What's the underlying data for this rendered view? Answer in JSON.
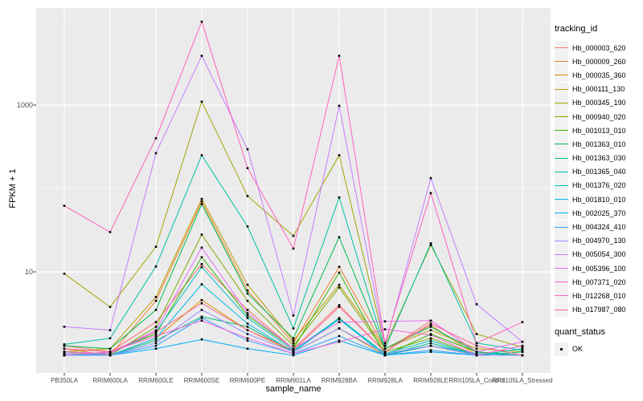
{
  "figure": {
    "y_axis_title": "FPKM + 1",
    "x_axis_title": "sample_name",
    "legend_title": "tracking_id",
    "quant_status_title": "quant_status",
    "quant_status_item": "OK"
  },
  "chart_data": {
    "type": "line",
    "title": "",
    "xlabel": "sample_name",
    "ylabel": "FPKM + 1",
    "y_scale": "log10",
    "ylim": [
      0.6,
      14500
    ],
    "y_ticks": [
      1000,
      10
    ],
    "y_tick_labels": [
      "1000",
      "10"
    ],
    "y_minor_gridlines": [
      10000,
      100,
      1
    ],
    "grid": "on",
    "legend_position": "right",
    "point_marker": "small-black-square",
    "point_status_label": "OK",
    "panel_background": "#EBEBEB",
    "gridline_color": "#FFFFFF",
    "tick_text_color": "#4D4D4D",
    "categories": [
      "PB350LA",
      "RRIM600LA",
      "RRIM600LE",
      "RRIM600SE",
      "RRIM600PE",
      "RRIM901LA",
      "RRIM928BA",
      "RRIM928LA",
      "RRIM928LE",
      "RRII105LA_Control",
      "RRII105LA_Stressed"
    ],
    "series": [
      {
        "name": "Hb_000003_620",
        "color": "#F8766D",
        "values": [
          1.3,
          1.1,
          2.5,
          12.4,
          3.5,
          1.2,
          4.0,
          1.1,
          2.6,
          1.1,
          1.0
        ]
      },
      {
        "name": "Hb_000009_260",
        "color": "#EA8331",
        "values": [
          1.2,
          1.0,
          4.5,
          70,
          6.0,
          1.4,
          11.5,
          1.2,
          2.3,
          1.0,
          1.0
        ]
      },
      {
        "name": "Hb_000035_360",
        "color": "#D89000",
        "values": [
          1.0,
          1.0,
          1.6,
          4.6,
          2.0,
          1.1,
          2.1,
          1.0,
          1.3,
          1.0,
          1.0
        ]
      },
      {
        "name": "Hb_000111_130",
        "color": "#C09B00",
        "values": [
          1.1,
          1.2,
          5.0,
          75,
          7.0,
          1.5,
          7.0,
          1.2,
          2.0,
          1.2,
          1.1
        ]
      },
      {
        "name": "Hb_000345_190",
        "color": "#A3A500",
        "values": [
          9.5,
          3.8,
          20,
          1100,
          81,
          27,
          250,
          1.3,
          21,
          1.8,
          1.25
        ]
      },
      {
        "name": "Hb_000940_020",
        "color": "#7CAE00",
        "values": [
          1.1,
          1.0,
          2.2,
          28,
          4.5,
          1.3,
          6.5,
          1.1,
          1.6,
          1.0,
          1.0
        ]
      },
      {
        "name": "Hb_001013_010",
        "color": "#39B600",
        "values": [
          1.0,
          1.1,
          1.8,
          15,
          3.0,
          1.2,
          9.8,
          1.0,
          1.8,
          1.1,
          1.0
        ]
      },
      {
        "name": "Hb_001363_010",
        "color": "#00BB4E",
        "values": [
          1.3,
          1.2,
          3.5,
          65,
          5.5,
          1.6,
          26,
          1.2,
          2.2,
          1.1,
          1.0
        ]
      },
      {
        "name": "Hb_001363_030",
        "color": "#00BF7D",
        "values": [
          1.0,
          1.0,
          1.5,
          2.9,
          2.2,
          1.1,
          2.8,
          1.0,
          1.4,
          1.0,
          1.1
        ]
      },
      {
        "name": "Hb_001365_040",
        "color": "#00C1A3",
        "values": [
          1.35,
          1.6,
          11.6,
          250,
          35,
          2.1,
          78,
          1.2,
          22,
          1.4,
          1.15
        ]
      },
      {
        "name": "Hb_001376_020",
        "color": "#00BFC4",
        "values": [
          1.0,
          1.05,
          1.9,
          11.4,
          2.8,
          1.15,
          2.75,
          1.05,
          1.5,
          1.0,
          1.2
        ]
      },
      {
        "name": "Hb_001810_010",
        "color": "#00BAE0",
        "values": [
          1.05,
          1.0,
          1.6,
          7.1,
          2.4,
          1.1,
          2.7,
          1.0,
          1.3,
          1.05,
          1.0
        ]
      },
      {
        "name": "Hb_002025_370",
        "color": "#00B0F6",
        "values": [
          1.0,
          1.0,
          1.2,
          1.55,
          1.2,
          1.0,
          1.5,
          1.0,
          1.1,
          1.0,
          1.0
        ]
      },
      {
        "name": "Hb_004324_410",
        "color": "#35A2FF",
        "values": [
          1.0,
          1.0,
          1.3,
          2.8,
          1.5,
          1.05,
          1.7,
          1.0,
          1.15,
          1.0,
          1.0
        ]
      },
      {
        "name": "Hb_004970_130",
        "color": "#9590FF",
        "values": [
          1.05,
          1.0,
          1.4,
          3.5,
          1.8,
          1.1,
          2.1,
          1.05,
          1.3,
          1.0,
          1.0
        ]
      },
      {
        "name": "Hb_005054_300",
        "color": "#C77CFF",
        "values": [
          2.2,
          2.0,
          265,
          3900,
          295,
          3.0,
          980,
          1.3,
          133,
          4.1,
          1.45
        ]
      },
      {
        "name": "Hb_005396_100",
        "color": "#E76BF3",
        "values": [
          1.1,
          1.05,
          2.0,
          19.5,
          3.2,
          1.2,
          2.5,
          2.55,
          2.6,
          1.1,
          1.45
        ]
      },
      {
        "name": "Hb_007371_020",
        "color": "#FA62DB",
        "values": [
          1.0,
          1.1,
          1.7,
          2.6,
          1.6,
          1.05,
          1.45,
          2.05,
          1.75,
          1.0,
          1.3
        ]
      },
      {
        "name": "Hb_012268_010",
        "color": "#FF62BC",
        "values": [
          62,
          30,
          400,
          10000,
          175,
          19,
          3900,
          1.4,
          88,
          1.4,
          2.5
        ]
      },
      {
        "name": "Hb_017987_080",
        "color": "#FF6A98",
        "values": [
          1.2,
          1.1,
          1.9,
          4.2,
          2.0,
          1.15,
          3.8,
          1.1,
          2.4,
          1.3,
          1.0
        ]
      }
    ]
  }
}
